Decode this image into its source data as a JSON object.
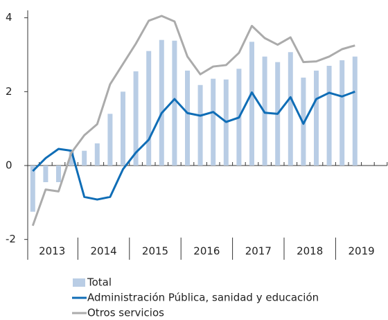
{
  "chart_data": {
    "type": "bar-line",
    "years": [
      "2013",
      "2014",
      "2015",
      "2016",
      "2017",
      "2018",
      "2019"
    ],
    "ylim": [
      -2.4,
      4.2
    ],
    "yticks": [
      -2,
      0,
      2,
      4
    ],
    "series": [
      {
        "name": "Total",
        "type": "bar",
        "color": "#b9cde5",
        "values": [
          -1.25,
          -0.45,
          -0.45,
          0.4,
          0.4,
          0.6,
          1.4,
          2.0,
          2.55,
          3.1,
          3.4,
          3.38,
          2.57,
          2.18,
          2.35,
          2.33,
          2.62,
          3.35,
          2.95,
          2.8,
          3.07,
          2.38,
          2.57,
          2.7,
          2.85,
          2.95
        ]
      },
      {
        "name": "Administración Pública, sanidad y educación",
        "type": "line",
        "color": "#0f6db6",
        "values": [
          -0.15,
          0.2,
          0.45,
          0.4,
          -0.85,
          -0.92,
          -0.85,
          -0.1,
          0.35,
          0.7,
          1.42,
          1.8,
          1.42,
          1.35,
          1.45,
          1.18,
          1.3,
          1.98,
          1.43,
          1.4,
          1.85,
          1.13,
          1.8,
          1.97,
          1.87,
          2.0
        ]
      },
      {
        "name": "Otros servicios",
        "type": "line",
        "color": "#ababab",
        "values": [
          -1.63,
          -0.65,
          -0.7,
          0.35,
          0.82,
          1.12,
          2.2,
          2.75,
          3.3,
          3.92,
          4.05,
          3.9,
          2.95,
          2.47,
          2.68,
          2.72,
          3.05,
          3.78,
          3.45,
          3.27,
          3.47,
          2.8,
          2.82,
          2.95,
          3.15,
          3.25
        ]
      }
    ]
  }
}
